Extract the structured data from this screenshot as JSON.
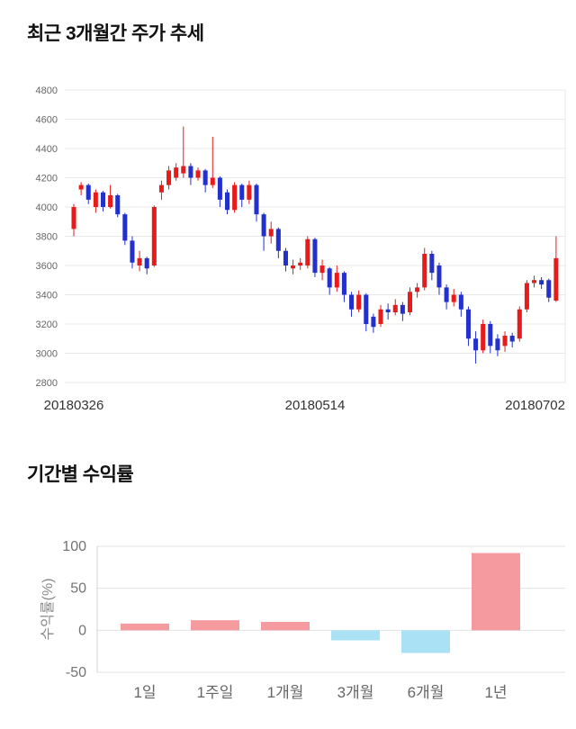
{
  "page": {
    "background": "#ffffff"
  },
  "chart_data": [
    {
      "type": "candlestick",
      "title": "최근 3개월간 주가 추세",
      "ylabel": "",
      "xlabel": "",
      "ylim": [
        2800,
        4800
      ],
      "y_ticks": [
        4800,
        4600,
        4400,
        4200,
        4000,
        3800,
        3600,
        3400,
        3200,
        3000,
        2800
      ],
      "x_tick_labels": [
        "20180326",
        "20180514",
        "20180702"
      ],
      "grid": true,
      "up_color": "#e81a1a",
      "down_color": "#2330cc",
      "grid_color": "#e8e8e8",
      "tick_color": "#666666",
      "x_label_color": "#333333",
      "candles_format": "ohlc",
      "candles": [
        [
          3850,
          4020,
          3800,
          4000
        ],
        [
          4120,
          4170,
          4080,
          4150
        ],
        [
          4150,
          4160,
          4020,
          4050
        ],
        [
          4000,
          4120,
          3960,
          4100
        ],
        [
          4100,
          4110,
          3970,
          4000
        ],
        [
          4000,
          4150,
          3990,
          4080
        ],
        [
          4080,
          4090,
          3930,
          3950
        ],
        [
          3950,
          3960,
          3740,
          3770
        ],
        [
          3770,
          3800,
          3580,
          3620
        ],
        [
          3600,
          3700,
          3560,
          3650
        ],
        [
          3650,
          3660,
          3540,
          3580
        ],
        [
          3600,
          4010,
          3590,
          4000
        ],
        [
          4100,
          4180,
          4050,
          4150
        ],
        [
          4150,
          4280,
          4120,
          4250
        ],
        [
          4200,
          4300,
          4180,
          4270
        ],
        [
          4230,
          4550,
          4200,
          4280
        ],
        [
          4280,
          4300,
          4150,
          4200
        ],
        [
          4200,
          4270,
          4180,
          4250
        ],
        [
          4250,
          4260,
          4100,
          4150
        ],
        [
          4150,
          4480,
          4130,
          4200
        ],
        [
          4200,
          4210,
          4000,
          4050
        ],
        [
          4100,
          4120,
          3950,
          3980
        ],
        [
          3980,
          4170,
          3960,
          4150
        ],
        [
          4150,
          4160,
          4000,
          4050
        ],
        [
          4050,
          4180,
          4020,
          4150
        ],
        [
          4150,
          4160,
          3900,
          3950
        ],
        [
          3950,
          3960,
          3700,
          3800
        ],
        [
          3800,
          3900,
          3750,
          3850
        ],
        [
          3850,
          3860,
          3650,
          3700
        ],
        [
          3700,
          3720,
          3560,
          3600
        ],
        [
          3580,
          3640,
          3540,
          3600
        ],
        [
          3600,
          3650,
          3570,
          3620
        ],
        [
          3600,
          3800,
          3580,
          3780
        ],
        [
          3780,
          3790,
          3520,
          3550
        ],
        [
          3550,
          3640,
          3500,
          3600
        ],
        [
          3580,
          3590,
          3400,
          3450
        ],
        [
          3450,
          3600,
          3420,
          3550
        ],
        [
          3550,
          3560,
          3350,
          3400
        ],
        [
          3400,
          3420,
          3250,
          3300
        ],
        [
          3300,
          3430,
          3280,
          3400
        ],
        [
          3400,
          3410,
          3150,
          3200
        ],
        [
          3250,
          3270,
          3140,
          3180
        ],
        [
          3200,
          3330,
          3180,
          3300
        ],
        [
          3300,
          3340,
          3230,
          3280
        ],
        [
          3280,
          3370,
          3260,
          3330
        ],
        [
          3330,
          3350,
          3220,
          3270
        ],
        [
          3280,
          3450,
          3260,
          3420
        ],
        [
          3420,
          3480,
          3380,
          3450
        ],
        [
          3450,
          3720,
          3430,
          3680
        ],
        [
          3680,
          3700,
          3500,
          3550
        ],
        [
          3600,
          3620,
          3400,
          3450
        ],
        [
          3450,
          3470,
          3300,
          3350
        ],
        [
          3350,
          3440,
          3320,
          3400
        ],
        [
          3400,
          3420,
          3250,
          3300
        ],
        [
          3300,
          3320,
          3050,
          3100
        ],
        [
          3100,
          3150,
          2930,
          3020
        ],
        [
          3020,
          3230,
          3000,
          3200
        ],
        [
          3200,
          3220,
          3000,
          3050
        ],
        [
          3100,
          3130,
          2980,
          3020
        ],
        [
          3050,
          3150,
          3010,
          3120
        ],
        [
          3120,
          3140,
          3040,
          3080
        ],
        [
          3100,
          3320,
          3080,
          3300
        ],
        [
          3300,
          3500,
          3280,
          3480
        ],
        [
          3480,
          3530,
          3450,
          3500
        ],
        [
          3500,
          3520,
          3440,
          3470
        ],
        [
          3500,
          3510,
          3350,
          3380
        ],
        [
          3360,
          3800,
          3350,
          3650
        ]
      ]
    },
    {
      "type": "bar",
      "title": "기간별 수익률",
      "ylabel": "수익률(%)",
      "xlabel": "",
      "categories": [
        "1일",
        "1주일",
        "1개월",
        "3개월",
        "6개월",
        "1년"
      ],
      "values": [
        8,
        12,
        10,
        -12,
        -27,
        92
      ],
      "ylim": [
        -50,
        100
      ],
      "y_ticks": [
        100,
        50,
        0,
        -50
      ],
      "grid": true,
      "positive_color": "#f59ba0",
      "negative_color": "#abe1f5",
      "grid_color": "#e3e3e3",
      "axis_line_color": "#d0d0d0",
      "tick_color": "#737373",
      "category_color": "#666666",
      "ylabel_color": "#8a8a8a"
    }
  ]
}
